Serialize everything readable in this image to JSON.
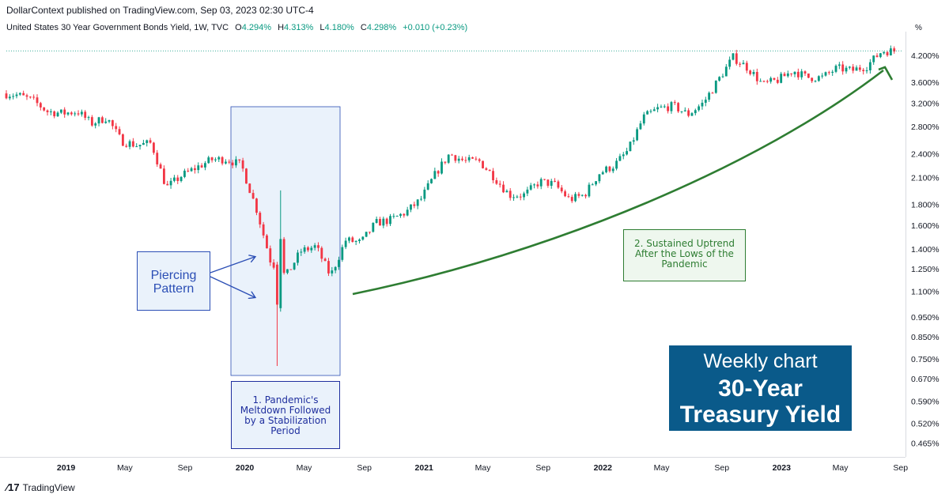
{
  "header": {
    "publisher": "DollarContext published on TradingView.com, Sep 03, 2023 02:30 UTC-4"
  },
  "legend": {
    "symbol": "United States 30 Year Government Bonds Yield, 1W, TVC",
    "open_label": "O",
    "open": "4.294%",
    "high_label": "H",
    "high": "4.313%",
    "low_label": "L",
    "low": "4.180%",
    "close_label": "C",
    "close": "4.298%",
    "change": "+0.010 (+0.23%)"
  },
  "axis": {
    "unit_label": "%"
  },
  "annotations": {
    "piercing": "Piercing\nPattern",
    "meltdown": "1. Pandemic's\nMeltdown Followed\nby a Stabilization\nPeriod",
    "uptrend": "2. Sustained Uptrend\nAfter the Lows of the\nPandemic"
  },
  "title_box": {
    "line1": "Weekly chart",
    "line2": "30-Year\nTreasury Yield"
  },
  "footer": {
    "logo_text": "TradingView"
  },
  "colors": {
    "up": "#089981",
    "down": "#f23645",
    "trend_arrow": "#2e7d32",
    "piercing_arrow": "#2b4eb5",
    "title_bg": "#0a5a8a"
  },
  "chart_data": {
    "type": "line",
    "title": "30-Year Treasury Yield",
    "subtitle": "Weekly chart",
    "y_scale": "log",
    "ylim": [
      0.43,
      4.8
    ],
    "y_ticks": [
      "4.200%",
      "3.600%",
      "3.200%",
      "2.800%",
      "2.400%",
      "2.100%",
      "1.800%",
      "1.600%",
      "1.400%",
      "1.250%",
      "1.100%",
      "0.950%",
      "0.850%",
      "0.750%",
      "0.670%",
      "0.590%",
      "0.520%",
      "0.465%"
    ],
    "y_tick_values": [
      4.2,
      3.6,
      3.2,
      2.8,
      2.4,
      2.1,
      1.8,
      1.6,
      1.4,
      1.25,
      1.1,
      0.95,
      0.85,
      0.75,
      0.67,
      0.59,
      0.52,
      0.465
    ],
    "x_ticks": [
      "2019",
      "May",
      "Sep",
      "2020",
      "May",
      "Sep",
      "2021",
      "May",
      "Sep",
      "2022",
      "May",
      "Sep",
      "2023",
      "May",
      "Sep"
    ],
    "x_tick_values": [
      "2019-01",
      "2019-05",
      "2019-09",
      "2020-01",
      "2020-05",
      "2020-09",
      "2021-01",
      "2021-05",
      "2021-09",
      "2022-01",
      "2022-05",
      "2022-09",
      "2023-01",
      "2023-05",
      "2023-09"
    ],
    "series": [
      {
        "x": [
          "2018-09",
          "2018-10",
          "2018-11",
          "2018-12",
          "2019-01",
          "2019-02",
          "2019-03",
          "2019-04",
          "2019-05",
          "2019-06",
          "2019-07",
          "2019-08",
          "2019-09",
          "2019-10",
          "2019-11",
          "2019-12",
          "2020-01",
          "2020-02",
          "2020-03",
          "2020-04",
          "2020-05",
          "2020-06",
          "2020-07",
          "2020-08",
          "2020-09",
          "2020-10",
          "2020-11",
          "2020-12",
          "2021-01",
          "2021-02",
          "2021-03",
          "2021-04",
          "2021-05",
          "2021-06",
          "2021-07",
          "2021-08",
          "2021-09",
          "2021-10",
          "2021-11",
          "2021-12",
          "2022-01",
          "2022-02",
          "2022-03",
          "2022-04",
          "2022-05",
          "2022-06",
          "2022-07",
          "2022-08",
          "2022-09",
          "2022-10",
          "2022-11",
          "2022-12",
          "2023-01",
          "2023-02",
          "2023-03",
          "2023-04",
          "2023-05",
          "2023-06",
          "2023-07",
          "2023-08",
          "2023-09"
        ],
        "values": [
          3.38,
          3.35,
          3.25,
          3.05,
          3.02,
          3.05,
          2.85,
          2.95,
          2.58,
          2.52,
          2.55,
          1.98,
          2.12,
          2.22,
          2.32,
          2.33,
          2.25,
          1.75,
          1.3,
          1.2,
          1.38,
          1.42,
          1.2,
          1.47,
          1.45,
          1.62,
          1.65,
          1.72,
          1.85,
          2.15,
          2.4,
          2.3,
          2.3,
          2.1,
          1.9,
          1.9,
          2.05,
          2.02,
          1.85,
          1.9,
          2.15,
          2.25,
          2.45,
          2.95,
          3.1,
          3.15,
          3.0,
          3.2,
          3.65,
          4.15,
          3.9,
          3.55,
          3.65,
          3.85,
          3.7,
          3.7,
          3.9,
          3.85,
          3.95,
          4.3,
          4.3
        ]
      }
    ],
    "candles": {
      "x_start": "2018-09-01",
      "interval": "1W",
      "count": 260,
      "shown": "OHLC weekly candles tracing the closing series above; piercing-pattern candles in March 2020 span 0.70% to 1.95%"
    }
  }
}
